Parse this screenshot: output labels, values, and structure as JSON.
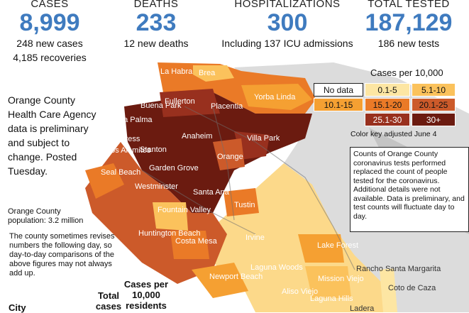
{
  "stats": [
    {
      "label": "CASES",
      "value": "8,999",
      "sub1": "248 new cases",
      "sub2": "4,185 recoveries"
    },
    {
      "label": "DEATHS",
      "value": "233",
      "sub1": "12 new deaths",
      "sub2": ""
    },
    {
      "label": "HOSPITALIZATIONS",
      "value": "300",
      "sub1": "Including 137 ICU admissions",
      "sub2": ""
    },
    {
      "label": "TOTAL TESTED",
      "value": "187,129",
      "sub1": "186 new tests",
      "sub2": ""
    }
  ],
  "note": "Orange County Health Care Agency data is preliminary and subject to change. Posted Tuesday.",
  "population": "Orange County population: 3.2 million",
  "revise_note": "The county sometimes revises numbers the following day, so day-to-day comparisons of the above figures may not always add up.",
  "table_headers": {
    "city": "City",
    "total": "Total cases",
    "per10k": "Cases per 10,000 residents"
  },
  "legend": {
    "title": "Cases per 10,000",
    "items": [
      {
        "label": "No data",
        "color": "#ffffff"
      },
      {
        "label": "0.1-5",
        "color": "#fde6a3"
      },
      {
        "label": "5.1-10",
        "color": "#fbc25c"
      },
      {
        "label": "10.1-15",
        "color": "#f5a032"
      },
      {
        "label": "15.1-20",
        "color": "#ea7a27"
      },
      {
        "label": "20.1-25",
        "color": "#cc5a2a"
      },
      {
        "label": "25.1-30",
        "color": "#98301e"
      },
      {
        "label": "30+",
        "color": "#6b1b10"
      }
    ],
    "adjusted": "Color key adjusted June 4"
  },
  "info_box": "Counts of Orange County coronavirus tests performed replaced the count of people tested for the coronavirus. Additional details were not available. Data is preliminary, and test counts will fluctuate day to day.",
  "map": {
    "labels": [
      "La Habra",
      "Brea",
      "Fullerton",
      "Yorba Linda",
      "Placentia",
      "Buena Park",
      "La Palma",
      "Cypress",
      "Anaheim",
      "Villa Park",
      "Los Alamitos",
      "Stanton",
      "Orange",
      "Seal Beach",
      "Garden Grove",
      "Westminster",
      "Santa Ana",
      "Tustin",
      "Fountain Valley",
      "Huntington Beach",
      "Costa Mesa",
      "Irvine",
      "Newport Beach",
      "Laguna Woods",
      "Lake Forest",
      "Rancho Santa Margarita",
      "Mission Viejo",
      "Coto de Caza",
      "Aliso Viejo",
      "Laguna Hills",
      "Ladera"
    ]
  }
}
